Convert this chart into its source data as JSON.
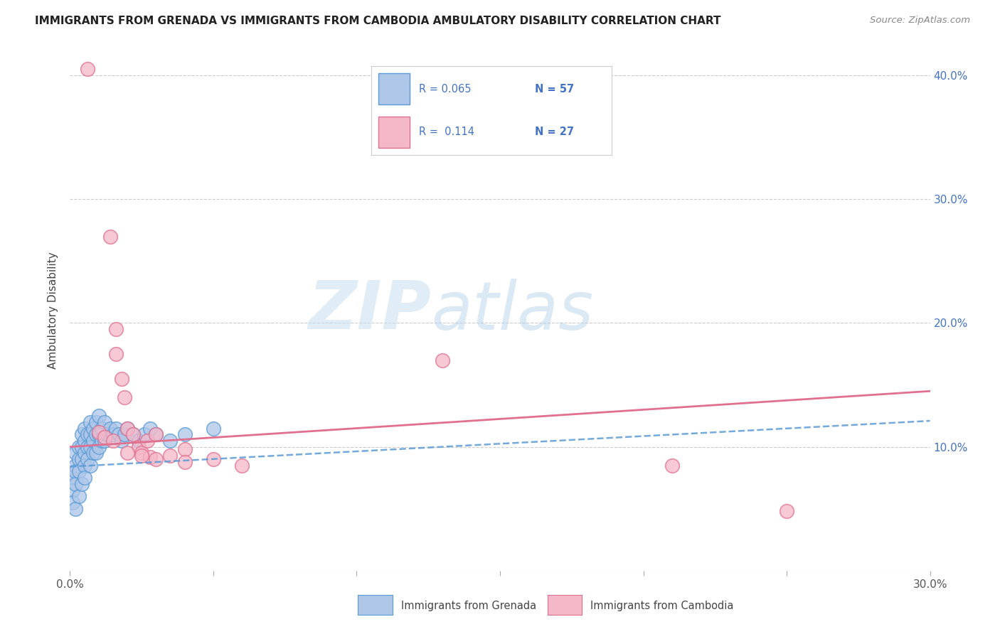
{
  "title": "IMMIGRANTS FROM GRENADA VS IMMIGRANTS FROM CAMBODIA AMBULATORY DISABILITY CORRELATION CHART",
  "source": "Source: ZipAtlas.com",
  "ylabel": "Ambulatory Disability",
  "xlim": [
    0.0,
    0.3
  ],
  "ylim": [
    0.0,
    0.42
  ],
  "color_blue_fill": "#aec6e8",
  "color_blue_edge": "#5b9bd5",
  "color_pink_fill": "#f4b8c8",
  "color_pink_edge": "#e07090",
  "color_blue_line": "#5b9bd5",
  "color_pink_line": "#e07090",
  "color_text_blue": "#4472c4",
  "background": "#ffffff",
  "grenada_x": [
    0.001,
    0.001,
    0.001,
    0.002,
    0.002,
    0.002,
    0.002,
    0.002,
    0.003,
    0.003,
    0.003,
    0.003,
    0.004,
    0.004,
    0.004,
    0.004,
    0.005,
    0.005,
    0.005,
    0.005,
    0.005,
    0.006,
    0.006,
    0.006,
    0.007,
    0.007,
    0.007,
    0.007,
    0.008,
    0.008,
    0.008,
    0.009,
    0.009,
    0.009,
    0.01,
    0.01,
    0.01,
    0.011,
    0.011,
    0.012,
    0.012,
    0.013,
    0.014,
    0.015,
    0.016,
    0.017,
    0.018,
    0.019,
    0.02,
    0.022,
    0.024,
    0.026,
    0.028,
    0.03,
    0.035,
    0.04,
    0.05
  ],
  "grenada_y": [
    0.075,
    0.065,
    0.055,
    0.095,
    0.085,
    0.08,
    0.07,
    0.05,
    0.1,
    0.09,
    0.08,
    0.06,
    0.11,
    0.1,
    0.09,
    0.07,
    0.115,
    0.105,
    0.095,
    0.085,
    0.075,
    0.11,
    0.1,
    0.09,
    0.12,
    0.11,
    0.1,
    0.085,
    0.115,
    0.105,
    0.095,
    0.12,
    0.11,
    0.095,
    0.125,
    0.11,
    0.1,
    0.115,
    0.105,
    0.12,
    0.105,
    0.11,
    0.115,
    0.11,
    0.115,
    0.11,
    0.105,
    0.11,
    0.115,
    0.11,
    0.105,
    0.11,
    0.115,
    0.11,
    0.105,
    0.11,
    0.115
  ],
  "cambodia_x": [
    0.006,
    0.014,
    0.016,
    0.016,
    0.018,
    0.019,
    0.02,
    0.022,
    0.024,
    0.025,
    0.027,
    0.028,
    0.03,
    0.035,
    0.04,
    0.05,
    0.06,
    0.13,
    0.21,
    0.25,
    0.01,
    0.012,
    0.015,
    0.02,
    0.025,
    0.03,
    0.04
  ],
  "cambodia_y": [
    0.405,
    0.27,
    0.195,
    0.175,
    0.155,
    0.14,
    0.115,
    0.11,
    0.1,
    0.095,
    0.105,
    0.092,
    0.11,
    0.093,
    0.098,
    0.09,
    0.085,
    0.17,
    0.085,
    0.048,
    0.112,
    0.108,
    0.105,
    0.095,
    0.093,
    0.09,
    0.088
  ]
}
